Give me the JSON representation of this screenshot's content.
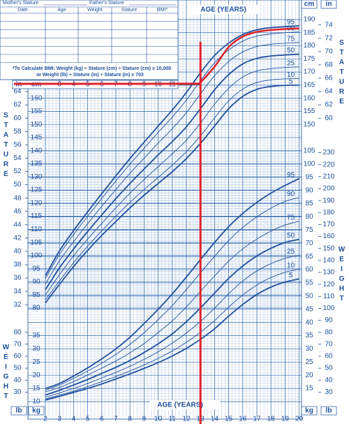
{
  "header": {
    "mother_stature": "Mother's Stature",
    "father_stature": "Father's Stature",
    "columns": [
      "Date",
      "Age",
      "Weight",
      "Stature",
      "BMI*"
    ],
    "bmi_note": [
      "*To Calculate BMI: Weight (kg) ÷ Stature (cm) ÷ Stature (cm) x 10,000",
      "or Weight (lb) ÷ Stature (in) ÷ Stature (in) x 703"
    ]
  },
  "chart_data": [
    {
      "type": "line",
      "y_label": "STATURE",
      "x_label": "AGE (YEARS)",
      "y_unit": "cm",
      "y2_unit": "in",
      "x": [
        2,
        3,
        4,
        5,
        6,
        7,
        8,
        9,
        10,
        11,
        12,
        13,
        14,
        15,
        16,
        17,
        18,
        19,
        20
      ],
      "xlim": [
        2,
        20
      ],
      "xticks": [
        3,
        4,
        5,
        6,
        7,
        8,
        9,
        10,
        11
      ],
      "ylim": [
        80,
        190
      ],
      "yticks": [
        80,
        85,
        90,
        95,
        100,
        105,
        110,
        115,
        120,
        125,
        130,
        135,
        140,
        145,
        150,
        155,
        160,
        165,
        170,
        175,
        180,
        185,
        190
      ],
      "y2lim": [
        31.5,
        74.8
      ],
      "y2ticks": [
        32,
        34,
        36,
        38,
        40,
        42,
        44,
        46,
        48,
        50,
        52,
        54,
        56,
        58,
        60,
        62,
        64,
        66,
        68,
        70,
        72,
        74
      ],
      "series": [
        {
          "name": "5",
          "color": "#1f4e9c",
          "values": [
            82,
            89,
            95.8,
            102,
            107.7,
            113,
            118.2,
            123,
            127.5,
            132,
            137,
            142.8,
            149.4,
            156,
            160.7,
            163.4,
            164.5,
            164.9,
            165
          ]
        },
        {
          "name": "10",
          "color": "#1f4e9c",
          "values": [
            83.2,
            90.3,
            97.3,
            103.6,
            109.4,
            115,
            120.3,
            125.2,
            129.8,
            134.5,
            139.6,
            145.6,
            152.5,
            159,
            163.5,
            166,
            167,
            167.4,
            167.5
          ]
        },
        {
          "name": "25",
          "color": "#1f4e9c",
          "values": [
            85,
            92.7,
            99.9,
            106.3,
            112.3,
            118.2,
            123.8,
            129,
            133.9,
            138.8,
            144,
            150.5,
            157.7,
            163.8,
            168.1,
            170.4,
            171.3,
            171.7,
            171.9
          ]
        },
        {
          "name": "50",
          "color": "#1f4e9c",
          "values": [
            87,
            95.3,
            102.5,
            109.2,
            115.5,
            121.7,
            127.5,
            133,
            138.4,
            143.5,
            149.1,
            156,
            163.2,
            169,
            173.1,
            175.2,
            176.1,
            176.5,
            176.8
          ]
        },
        {
          "name": "75",
          "color": "#1f4e9c",
          "values": [
            89.2,
            98,
            105.3,
            112.2,
            118.8,
            125.2,
            131.4,
            137.1,
            142.9,
            148.4,
            154.5,
            161.7,
            168.6,
            174,
            177.7,
            179.7,
            180.6,
            181,
            181.3
          ]
        },
        {
          "name": "90",
          "color": "#1f4e9c",
          "values": [
            91.2,
            100.4,
            108,
            115,
            121.8,
            128.5,
            134.9,
            140.9,
            147,
            152.8,
            159.3,
            166.7,
            173.5,
            178.4,
            181.8,
            183.7,
            184.5,
            185,
            185.3
          ]
        },
        {
          "name": "95",
          "color": "#1f4e9c",
          "values": [
            92.3,
            101.8,
            109.5,
            116.7,
            123.6,
            130.4,
            137,
            143.2,
            149.4,
            155.5,
            162.2,
            169.7,
            176.3,
            181,
            184.3,
            186.1,
            186.9,
            187.3,
            187.6
          ]
        }
      ],
      "child_measurements": {
        "color": "#e0202a",
        "x": [
          13,
          14,
          15,
          16,
          17,
          18,
          19,
          20
        ],
        "values": [
          166,
          172,
          179.5,
          183.5,
          185.3,
          186,
          186.4,
          186.6
        ]
      },
      "marker": {
        "color": "#e0202a",
        "x": 13,
        "y": 165.5
      }
    },
    {
      "type": "line",
      "y_label": "WEIGHT",
      "x_label": "AGE (YEARS)",
      "y_unit": "kg",
      "y2_unit": "lb",
      "x": [
        2,
        3,
        4,
        5,
        6,
        7,
        8,
        9,
        10,
        11,
        12,
        13,
        14,
        15,
        16,
        17,
        18,
        19,
        20
      ],
      "xlim": [
        2,
        20
      ],
      "xticks": [
        2,
        3,
        4,
        5,
        6,
        7,
        8,
        9,
        10,
        11,
        12,
        13,
        14,
        15,
        16,
        17,
        18,
        19,
        20
      ],
      "ylim": [
        10,
        105
      ],
      "yticks": [
        10,
        15,
        20,
        25,
        30,
        35,
        40,
        45,
        50,
        55,
        60,
        65,
        70,
        75,
        80,
        85,
        90,
        95,
        100,
        105
      ],
      "y2lim": [
        22.05,
        231.5
      ],
      "y2ticks": [
        30,
        40,
        50,
        60,
        70,
        80,
        90,
        100,
        110,
        120,
        130,
        140,
        150,
        160,
        170,
        180,
        190,
        200,
        210,
        220,
        230
      ],
      "series": [
        {
          "name": "5",
          "color": "#1f4e9c",
          "values": [
            10.6,
            12,
            13.5,
            15,
            16.7,
            18.6,
            20.5,
            22.6,
            24.8,
            27.3,
            30.2,
            33.6,
            37.6,
            42.4,
            46.8,
            50.6,
            53.4,
            55.3,
            56.5
          ]
        },
        {
          "name": "10",
          "color": "#1f4e9c",
          "values": [
            11,
            12.5,
            14,
            15.7,
            17.6,
            19.5,
            21.6,
            23.9,
            26.4,
            29.2,
            32.5,
            36.3,
            40.7,
            45.8,
            50.4,
            54.2,
            57,
            59,
            60.2
          ]
        },
        {
          "name": "25",
          "color": "#1f4e9c",
          "values": [
            11.7,
            13.3,
            15,
            16.9,
            19,
            21.1,
            23.4,
            26,
            28.9,
            32.2,
            36,
            40.4,
            45.4,
            50.9,
            55.7,
            59.5,
            62.3,
            64.3,
            65.5
          ]
        },
        {
          "name": "50",
          "color": "#1f4e9c",
          "values": [
            12.5,
            14.3,
            16.3,
            18.4,
            20.7,
            23,
            25.6,
            28.6,
            31.9,
            35.7,
            40.3,
            45.5,
            51.1,
            56.7,
            61.4,
            65.2,
            68.1,
            70.3,
            71.5
          ]
        },
        {
          "name": "75",
          "color": "#1f4e9c",
          "values": [
            13.7,
            15.4,
            17.6,
            20.1,
            22.7,
            25.4,
            28.5,
            32,
            36.2,
            40.6,
            45.9,
            51.8,
            57.6,
            63.2,
            67.9,
            71.6,
            74.6,
            76.9,
            78.3
          ]
        },
        {
          "name": "90",
          "color": "#1f4e9c",
          "values": [
            14.4,
            16.3,
            18.8,
            21.6,
            24.6,
            27.9,
            31.7,
            36.1,
            41.1,
            46.4,
            52.5,
            58.8,
            65.1,
            71,
            76,
            80,
            83.3,
            85.9,
            87.3
          ]
        },
        {
          "name": "95",
          "color": "#1f4e9c",
          "values": [
            15,
            16.9,
            19.7,
            22.8,
            26.2,
            30,
            34.4,
            39.6,
            45,
            50.8,
            57.2,
            63.8,
            70.3,
            76.3,
            81.3,
            85.5,
            89,
            91.9,
            94.5
          ]
        }
      ]
    }
  ]
}
